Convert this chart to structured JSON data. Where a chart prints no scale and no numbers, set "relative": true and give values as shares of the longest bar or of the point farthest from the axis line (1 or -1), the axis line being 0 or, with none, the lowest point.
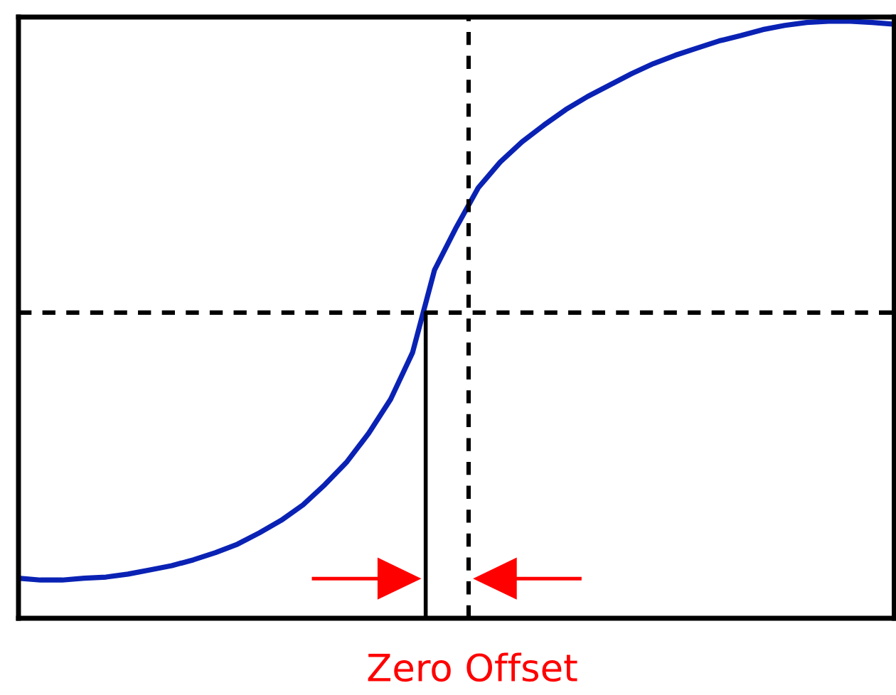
{
  "chart_data": {
    "type": "line",
    "relative": true,
    "categories": [
      null,
      null,
      null,
      null,
      null,
      null,
      null,
      null,
      null,
      null,
      null,
      null,
      null,
      null,
      null,
      null,
      null,
      null,
      null,
      null,
      null,
      null,
      null,
      null,
      null,
      null,
      null,
      null,
      null,
      null,
      null,
      null,
      null,
      null,
      null,
      null,
      null,
      null,
      null,
      null,
      null
    ],
    "series": [
      {
        "color": "#0a22b4",
        "values": [
          0.067,
          0.064,
          0.064,
          0.067,
          0.069,
          0.074,
          0.081,
          0.088,
          0.098,
          0.11,
          0.124,
          0.143,
          0.164,
          0.19,
          0.224,
          0.262,
          0.31,
          0.367,
          0.445,
          0.583,
          0.655,
          0.721,
          0.764,
          0.798,
          0.826,
          0.852,
          0.874,
          0.893,
          0.912,
          0.929,
          0.943,
          0.955,
          0.967,
          0.976,
          0.986,
          0.993,
          0.998,
          1,
          1,
          0.998,
          0.995
        ]
      }
    ],
    "ref_lines": [
      {
        "axis": "y",
        "value": 0.512,
        "color": "#000000",
        "line_style": "dashed"
      }
    ],
    "annotations": [
      "Zero Offset"
    ],
    "legend": false,
    "line_style": "solid",
    "marker": "none"
  }
}
